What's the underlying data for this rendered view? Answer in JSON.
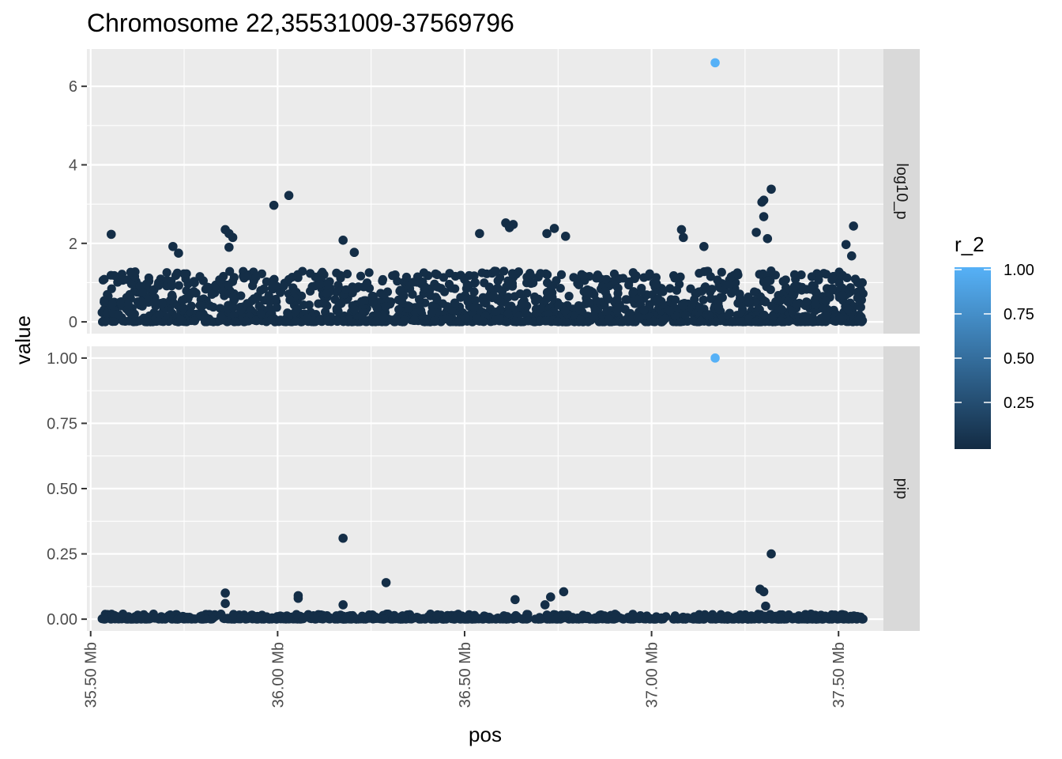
{
  "chart_data": {
    "type": "scatter",
    "title": "Chromosome 22,35531009-37569796",
    "xlabel": "pos",
    "ylabel": "value",
    "x_unit": "Mb",
    "xlim": [
      35.49,
      37.62
    ],
    "x_ticks": [
      35.5,
      36.0,
      36.5,
      37.0,
      37.5
    ],
    "x_tick_labels": [
      "35.50 Mb",
      "36.00 Mb",
      "36.50 Mb",
      "37.00 Mb",
      "37.50 Mb"
    ],
    "grid": true,
    "facets": [
      {
        "label": "log10_p",
        "ylim": [
          -0.3,
          6.95
        ],
        "y_ticks": [
          0,
          2,
          4,
          6
        ],
        "y_tick_labels": [
          "0",
          "2",
          "4",
          "6"
        ],
        "points": [
          {
            "x": 35.555,
            "y": 2.23,
            "r2": 0.02
          },
          {
            "x": 35.72,
            "y": 1.92,
            "r2": 0.02
          },
          {
            "x": 35.735,
            "y": 1.75,
            "r2": 0.02
          },
          {
            "x": 35.86,
            "y": 2.35,
            "r2": 0.02
          },
          {
            "x": 35.87,
            "y": 2.25,
            "r2": 0.02
          },
          {
            "x": 35.88,
            "y": 2.15,
            "r2": 0.02
          },
          {
            "x": 35.87,
            "y": 1.9,
            "r2": 0.02
          },
          {
            "x": 35.99,
            "y": 2.97,
            "r2": 0.02
          },
          {
            "x": 36.03,
            "y": 3.22,
            "r2": 0.02
          },
          {
            "x": 36.175,
            "y": 2.08,
            "r2": 0.02
          },
          {
            "x": 36.205,
            "y": 1.77,
            "r2": 0.02
          },
          {
            "x": 36.54,
            "y": 2.25,
            "r2": 0.02
          },
          {
            "x": 36.61,
            "y": 2.52,
            "r2": 0.02
          },
          {
            "x": 36.63,
            "y": 2.48,
            "r2": 0.02
          },
          {
            "x": 36.62,
            "y": 2.4,
            "r2": 0.02
          },
          {
            "x": 36.72,
            "y": 2.25,
            "r2": 0.02
          },
          {
            "x": 36.74,
            "y": 2.38,
            "r2": 0.02
          },
          {
            "x": 36.77,
            "y": 2.18,
            "r2": 0.02
          },
          {
            "x": 37.08,
            "y": 2.35,
            "r2": 0.02
          },
          {
            "x": 37.085,
            "y": 2.15,
            "r2": 0.02
          },
          {
            "x": 37.14,
            "y": 1.92,
            "r2": 0.02
          },
          {
            "x": 37.17,
            "y": 6.6,
            "r2": 1.0
          },
          {
            "x": 37.28,
            "y": 2.28,
            "r2": 0.02
          },
          {
            "x": 37.295,
            "y": 3.05,
            "r2": 0.02
          },
          {
            "x": 37.3,
            "y": 3.1,
            "r2": 0.02
          },
          {
            "x": 37.3,
            "y": 2.68,
            "r2": 0.02
          },
          {
            "x": 37.32,
            "y": 3.38,
            "r2": 0.02
          },
          {
            "x": 37.31,
            "y": 2.12,
            "r2": 0.02
          },
          {
            "x": 37.52,
            "y": 1.97,
            "r2": 0.02
          },
          {
            "x": 37.54,
            "y": 2.44,
            "r2": 0.02
          },
          {
            "x": 37.535,
            "y": 1.68,
            "r2": 0.02
          }
        ]
      },
      {
        "label": "pip",
        "ylim": [
          -0.045,
          1.045
        ],
        "y_ticks": [
          0,
          0.25,
          0.5,
          0.75,
          1.0
        ],
        "y_tick_labels": [
          "0.00",
          "0.25",
          "0.50",
          "0.75",
          "1.00"
        ],
        "points": [
          {
            "x": 35.86,
            "y": 0.1,
            "r2": 0.02
          },
          {
            "x": 35.86,
            "y": 0.06,
            "r2": 0.02
          },
          {
            "x": 36.055,
            "y": 0.09,
            "r2": 0.02
          },
          {
            "x": 36.055,
            "y": 0.08,
            "r2": 0.02
          },
          {
            "x": 36.175,
            "y": 0.31,
            "r2": 0.02
          },
          {
            "x": 36.175,
            "y": 0.055,
            "r2": 0.02
          },
          {
            "x": 36.29,
            "y": 0.14,
            "r2": 0.02
          },
          {
            "x": 36.73,
            "y": 0.085,
            "r2": 0.02
          },
          {
            "x": 36.765,
            "y": 0.105,
            "r2": 0.02
          },
          {
            "x": 36.715,
            "y": 0.055,
            "r2": 0.02
          },
          {
            "x": 36.635,
            "y": 0.075,
            "r2": 0.02
          },
          {
            "x": 37.17,
            "y": 1.0,
            "r2": 1.0
          },
          {
            "x": 37.29,
            "y": 0.115,
            "r2": 0.02
          },
          {
            "x": 37.3,
            "y": 0.105,
            "r2": 0.02
          },
          {
            "x": 37.32,
            "y": 0.25,
            "r2": 0.02
          },
          {
            "x": 37.305,
            "y": 0.05,
            "r2": 0.02
          }
        ]
      }
    ],
    "background_cloud": {
      "x_range": [
        35.53,
        37.57
      ],
      "log10_p_max": 1.3,
      "pip_max": 0.02,
      "r2": 0.02
    },
    "colorbar": {
      "title": "r_2",
      "low_color": "#132B43",
      "high_color": "#56B1F7",
      "range": [
        0.0,
        1.0
      ],
      "ticks": [
        0.25,
        0.5,
        0.75,
        1.0
      ],
      "tick_labels": [
        "0.25",
        "0.50",
        "0.75",
        "1.00"
      ]
    }
  }
}
